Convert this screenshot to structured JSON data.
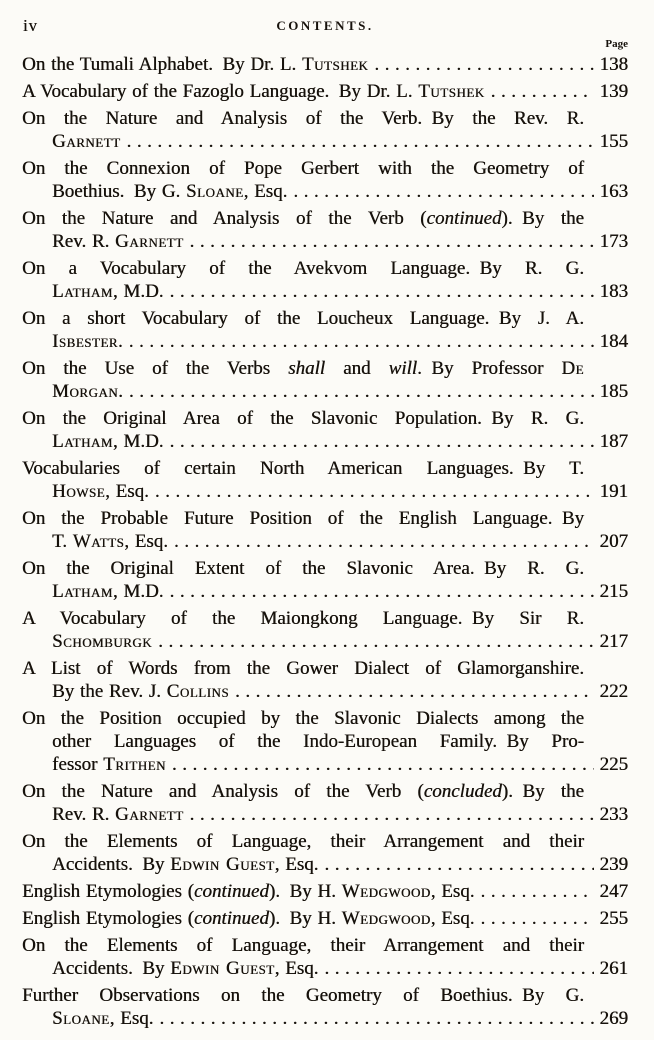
{
  "meta": {
    "paper_color": "#fcfbf7",
    "ink_color": "#17120c",
    "dot_leader_char": "."
  },
  "header": {
    "folio": "iv",
    "title": "CONTENTS.",
    "page_column_label": "Page"
  },
  "entries": [
    {
      "page": "138",
      "lines": [
        [
          {
            "t": "On the Tumali Alphabet. By Dr. L. "
          },
          {
            "t": "Tutshek",
            "s": "sc"
          }
        ]
      ]
    },
    {
      "page": "139",
      "lines": [
        [
          {
            "t": "A Vocabulary of the Fazoglo Language. By Dr. L. "
          },
          {
            "t": "Tutshek",
            "s": "sc"
          }
        ]
      ]
    },
    {
      "page": "155",
      "lines": [
        [
          {
            "t": "On the Nature and Analysis of the Verb. By the Rev. R."
          }
        ],
        [
          {
            "t": "Garnett",
            "s": "sc"
          }
        ]
      ]
    },
    {
      "page": "163",
      "lines": [
        [
          {
            "t": "On the Connexion of Pope Gerbert with the Geometry of"
          }
        ],
        [
          {
            "t": "Boethius. By G. "
          },
          {
            "t": "Sloane",
            "s": "sc"
          },
          {
            "t": ", Esq."
          }
        ]
      ]
    },
    {
      "page": "173",
      "lines": [
        [
          {
            "t": "On the Nature and Analysis of the Verb ("
          },
          {
            "t": "continued",
            "s": "i"
          },
          {
            "t": "). By the"
          }
        ],
        [
          {
            "t": "Rev. R. "
          },
          {
            "t": "Garnett",
            "s": "sc"
          }
        ]
      ]
    },
    {
      "page": "183",
      "lines": [
        [
          {
            "t": "On a Vocabulary of the Avekvom Language. By R. G."
          }
        ],
        [
          {
            "t": "Latham",
            "s": "sc"
          },
          {
            "t": ", M.D."
          }
        ]
      ]
    },
    {
      "page": "184",
      "lines": [
        [
          {
            "t": "On a short Vocabulary of the Loucheux Language. By J. A."
          }
        ],
        [
          {
            "t": "Isbester",
            "s": "sc"
          },
          {
            "t": "."
          }
        ]
      ]
    },
    {
      "page": "185",
      "lines": [
        [
          {
            "t": "On the Use of the Verbs "
          },
          {
            "t": "shall",
            "s": "i"
          },
          {
            "t": " and "
          },
          {
            "t": "will",
            "s": "i"
          },
          {
            "t": ". By Professor "
          },
          {
            "t": "De",
            "s": "sc"
          }
        ],
        [
          {
            "t": "Morgan",
            "s": "sc"
          },
          {
            "t": "."
          }
        ]
      ]
    },
    {
      "page": "187",
      "lines": [
        [
          {
            "t": "On the Original Area of the Slavonic Population. By R. G."
          }
        ],
        [
          {
            "t": "Latham",
            "s": "sc"
          },
          {
            "t": ", M.D."
          }
        ]
      ]
    },
    {
      "page": "191",
      "lines": [
        [
          {
            "t": "Vocabularies of certain North American Languages. By T."
          }
        ],
        [
          {
            "t": "Howse",
            "s": "sc"
          },
          {
            "t": ", Esq."
          }
        ]
      ]
    },
    {
      "page": "207",
      "lines": [
        [
          {
            "t": "On the Probable Future Position of the English Language. By"
          }
        ],
        [
          {
            "t": "T. "
          },
          {
            "t": "Watts",
            "s": "sc"
          },
          {
            "t": ", Esq."
          }
        ]
      ]
    },
    {
      "page": "215",
      "lines": [
        [
          {
            "t": "On the Original Extent of the Slavonic Area. By R. G."
          }
        ],
        [
          {
            "t": "Latham",
            "s": "sc"
          },
          {
            "t": ", M.D."
          }
        ]
      ]
    },
    {
      "page": "217",
      "lines": [
        [
          {
            "t": "A Vocabulary of the Maiongkong Language. By Sir R."
          }
        ],
        [
          {
            "t": "Schomburgk",
            "s": "sc"
          }
        ]
      ]
    },
    {
      "page": "222",
      "lines": [
        [
          {
            "t": "A List of Words from the Gower Dialect of Glamorganshire."
          }
        ],
        [
          {
            "t": "By the Rev. J. "
          },
          {
            "t": "Collins",
            "s": "sc"
          }
        ]
      ]
    },
    {
      "page": "225",
      "lines": [
        [
          {
            "t": "On the Position occupied by the Slavonic Dialects among the"
          }
        ],
        [
          {
            "t": "other Languages of the Indo-European Family. By Pro-"
          }
        ],
        [
          {
            "t": "fessor "
          },
          {
            "t": "Trithen",
            "s": "sc"
          }
        ]
      ]
    },
    {
      "page": "233",
      "lines": [
        [
          {
            "t": "On the Nature and Analysis of the Verb ("
          },
          {
            "t": "concluded",
            "s": "i"
          },
          {
            "t": "). By the"
          }
        ],
        [
          {
            "t": "Rev. R. "
          },
          {
            "t": "Garnett",
            "s": "sc"
          }
        ]
      ]
    },
    {
      "page": "239",
      "lines": [
        [
          {
            "t": "On the Elements of Language, their Arrangement and their"
          }
        ],
        [
          {
            "t": "Accidents. By "
          },
          {
            "t": "Edwin Guest",
            "s": "sc"
          },
          {
            "t": ", Esq."
          }
        ]
      ]
    },
    {
      "page": "247",
      "lines": [
        [
          {
            "t": "English Etymologies ("
          },
          {
            "t": "continued",
            "s": "i"
          },
          {
            "t": "). By H. "
          },
          {
            "t": "Wedgwood",
            "s": "sc"
          },
          {
            "t": ", Esq."
          }
        ]
      ]
    },
    {
      "page": "255",
      "lines": [
        [
          {
            "t": "English Etymologies ("
          },
          {
            "t": "continued",
            "s": "i"
          },
          {
            "t": "). By H. "
          },
          {
            "t": "Wedgwood",
            "s": "sc"
          },
          {
            "t": ", Esq."
          }
        ]
      ]
    },
    {
      "page": "261",
      "lines": [
        [
          {
            "t": "On the Elements of Language, their Arrangement and their"
          }
        ],
        [
          {
            "t": "Accidents. By "
          },
          {
            "t": "Edwin Guest",
            "s": "sc"
          },
          {
            "t": ", Esq."
          }
        ]
      ]
    },
    {
      "page": "269",
      "lines": [
        [
          {
            "t": "Further Observations on the Geometry of Boethius. By G."
          }
        ],
        [
          {
            "t": "Sloane",
            "s": "sc"
          },
          {
            "t": ", Esq."
          }
        ]
      ]
    }
  ]
}
